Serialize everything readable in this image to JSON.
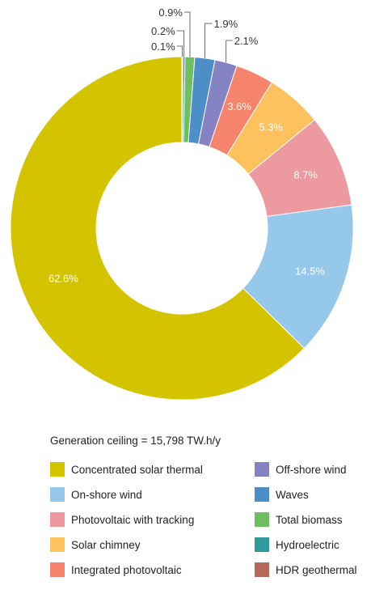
{
  "chart_data": {
    "type": "donut",
    "series": [
      {
        "name": "Concentrated solar thermal",
        "label": "62.6%",
        "value": 62.6,
        "color": "#d4c400"
      },
      {
        "name": "On-shore wind",
        "label": "14.5%",
        "value": 14.5,
        "color": "#95c8ea"
      },
      {
        "name": "Photovoltaic with tracking",
        "label": "8.7%",
        "value": 8.7,
        "color": "#ec9aa0"
      },
      {
        "name": "Solar chimney",
        "label": "5.3%",
        "value": 5.3,
        "color": "#fdc15e"
      },
      {
        "name": "Integrated photovoltaic",
        "label": "3.6%",
        "value": 3.6,
        "color": "#f6836b"
      },
      {
        "name": "Off-shore wind",
        "label": "2.1%",
        "value": 2.1,
        "color": "#8683c4"
      },
      {
        "name": "Waves",
        "label": "1.9%",
        "value": 1.9,
        "color": "#4c8ec7"
      },
      {
        "name": "Total biomass",
        "label": "0.9%",
        "value": 0.9,
        "color": "#6fbe61"
      },
      {
        "name": "Hydroelectric",
        "label": "0.2%",
        "value": 0.2,
        "color": "#2e9a9c"
      },
      {
        "name": "HDR geothermal",
        "label": "0.1%",
        "value": 0.1,
        "color": "#b5695b"
      }
    ],
    "caption": "Generation ceiling = 15,798 TW.h/y",
    "legend_position": "bottom"
  }
}
